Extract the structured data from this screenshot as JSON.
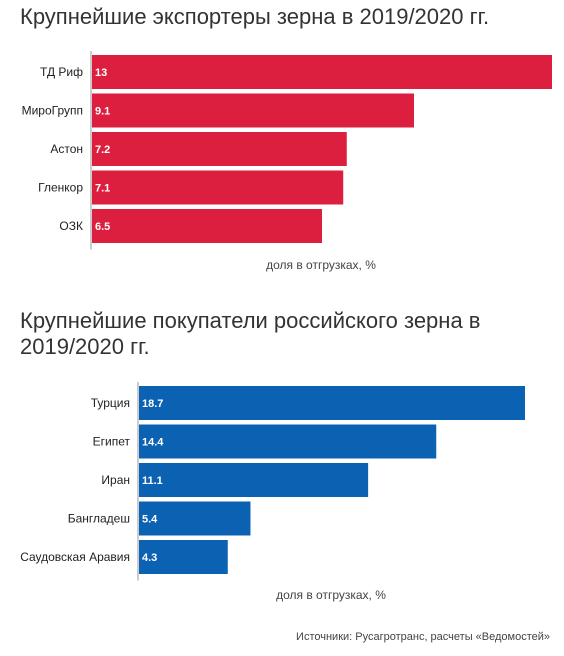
{
  "chart_data": [
    {
      "type": "bar",
      "orientation": "horizontal",
      "title": "Крупнейшие экспортеры зерна в 2019/2020 гг.",
      "categories": [
        "ТД Риф",
        "МироГрупп",
        "Астон",
        "Гленкор",
        "ОЗК"
      ],
      "values": [
        13,
        9.1,
        7.2,
        7.1,
        6.5
      ],
      "value_labels": [
        "13",
        "9.1",
        "7.2",
        "7.1",
        "6.5"
      ],
      "xlabel": "доля в отгрузках, %",
      "ylabel": "",
      "xlim": [
        0,
        13
      ],
      "color": "#dc1f3f",
      "grid": false,
      "legend": "none"
    },
    {
      "type": "bar",
      "orientation": "horizontal",
      "title": "Крупнейшие покупатели российского зерна в 2019/2020 гг.",
      "categories": [
        "Турция",
        "Египет",
        "Иран",
        "Бангладеш",
        "Саудовская Аравия"
      ],
      "values": [
        18.7,
        14.4,
        11.1,
        5.4,
        4.3
      ],
      "value_labels": [
        "18.7",
        "14.4",
        "11.1",
        "5.4",
        "4.3"
      ],
      "xlabel": "доля в отгрузках, %",
      "ylabel": "",
      "xlim": [
        0,
        18.7
      ],
      "color": "#0b61b2",
      "grid": false,
      "legend": "none"
    }
  ],
  "source": "Источники: Русагротранс, расчеты «Ведомостей»"
}
